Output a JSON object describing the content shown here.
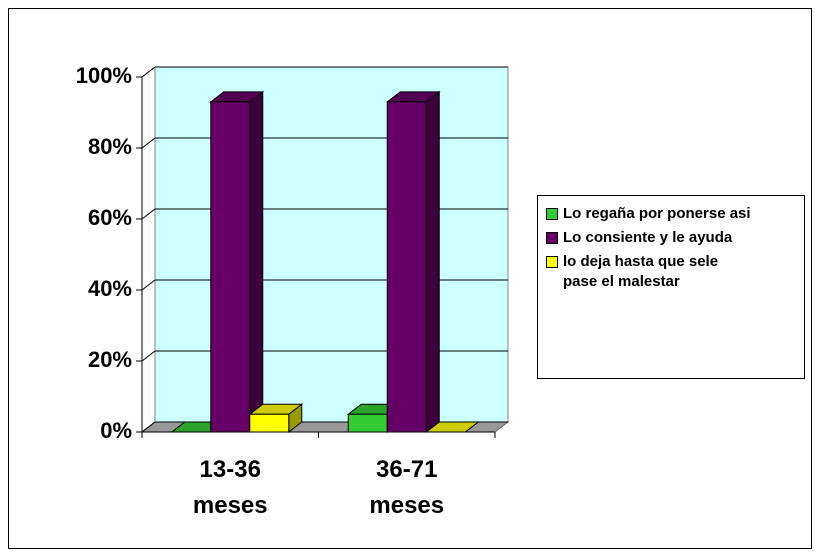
{
  "chart_data": {
    "type": "bar3d",
    "categories": [
      "13-36 meses",
      "36-71 meses"
    ],
    "series": [
      {
        "name": "Lo regaña por ponerse asi",
        "color": "#33cc33",
        "values": [
          0,
          5
        ]
      },
      {
        "name": "Lo consiente y le ayuda",
        "color": "#660066",
        "values": [
          93,
          93
        ]
      },
      {
        "name": "lo deja hasta que sele pase el malestar",
        "color": "#ffff00",
        "values": [
          5,
          0
        ]
      }
    ],
    "ylim": [
      0,
      100
    ],
    "yticks": [
      {
        "value": 0,
        "label": "0%"
      },
      {
        "value": 20,
        "label": "20%"
      },
      {
        "value": 40,
        "label": "40%"
      },
      {
        "value": 60,
        "label": "60%"
      },
      {
        "value": 80,
        "label": "80%"
      },
      {
        "value": 100,
        "label": "100%"
      }
    ],
    "grid": true,
    "legend": "right"
  }
}
